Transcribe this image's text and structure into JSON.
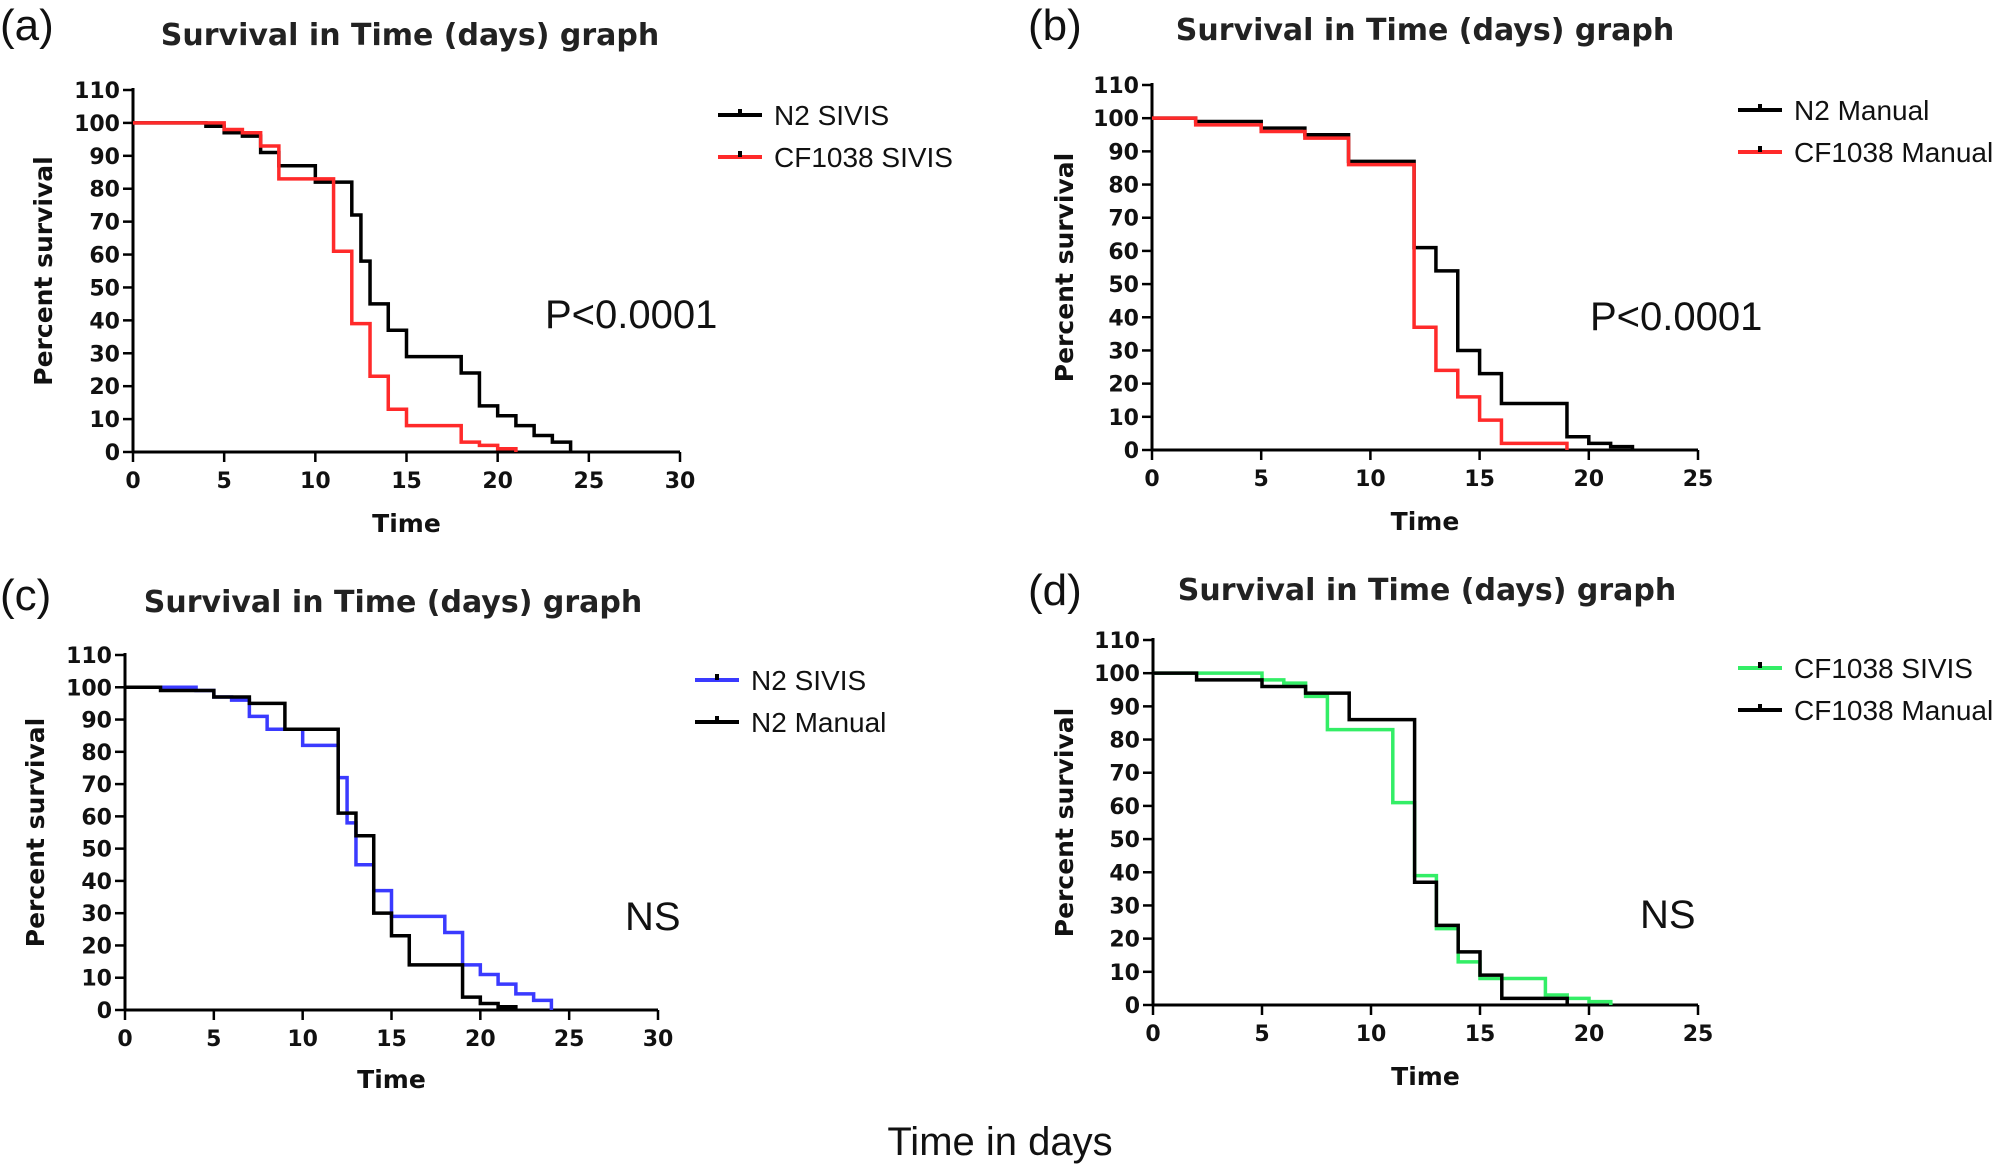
{
  "figure": {
    "footer_label": "Time in days"
  },
  "chart_data": [
    {
      "type": "line",
      "panel_label": "(a)",
      "title": "Survival in Time (days) graph",
      "xlabel": "Time",
      "ylabel": "Percent survival",
      "xlim": [
        0,
        30
      ],
      "ylim": [
        0,
        110
      ],
      "xticks": [
        0,
        5,
        10,
        15,
        20,
        25,
        30
      ],
      "yticks": [
        0,
        10,
        20,
        30,
        40,
        50,
        60,
        70,
        80,
        90,
        100,
        110
      ],
      "annotation": "P<0.0001",
      "series": [
        {
          "name": "N2 SIVIS",
          "color": "#000000",
          "x": [
            0,
            4,
            5,
            6,
            7,
            8,
            10,
            11,
            12,
            12.5,
            13,
            14,
            15,
            18,
            19,
            20,
            21,
            22,
            23,
            24
          ],
          "y": [
            100,
            99,
            97,
            96,
            91,
            87,
            82,
            82,
            72,
            58,
            45,
            37,
            29,
            24,
            14,
            11,
            8,
            5,
            3,
            0
          ]
        },
        {
          "name": "CF1038 SIVIS",
          "color": "#ff2a2a",
          "x": [
            0,
            5,
            6,
            7,
            8,
            10,
            11,
            12,
            13,
            14,
            15,
            18,
            19,
            20,
            21
          ],
          "y": [
            100,
            98,
            97,
            93,
            83,
            83,
            61,
            39,
            23,
            13,
            8,
            3,
            2,
            1,
            0
          ]
        }
      ]
    },
    {
      "type": "line",
      "panel_label": "(b)",
      "title": "Survival in Time (days) graph",
      "xlabel": "Time",
      "ylabel": "Percent survival",
      "xlim": [
        0,
        25
      ],
      "ylim": [
        0,
        110
      ],
      "xticks": [
        0,
        5,
        10,
        15,
        20,
        25
      ],
      "yticks": [
        0,
        10,
        20,
        30,
        40,
        50,
        60,
        70,
        80,
        90,
        100,
        110
      ],
      "annotation": "P<0.0001",
      "series": [
        {
          "name": "N2 Manual",
          "color": "#000000",
          "x": [
            0,
            2,
            5,
            7,
            9,
            12,
            13,
            14,
            15,
            16,
            19,
            20,
            21,
            22
          ],
          "y": [
            100,
            99,
            97,
            95,
            87,
            61,
            54,
            30,
            23,
            14,
            4,
            2,
            1,
            0
          ]
        },
        {
          "name": "CF1038 Manual",
          "color": "#ff2a2a",
          "x": [
            0,
            2,
            5,
            7,
            9,
            12,
            13,
            14,
            15,
            16,
            19
          ],
          "y": [
            100,
            98,
            96,
            94,
            86,
            37,
            24,
            16,
            9,
            2,
            0
          ]
        }
      ]
    },
    {
      "type": "line",
      "panel_label": "(c)",
      "title": "Survival in Time (days) graph",
      "xlabel": "Time",
      "ylabel": "Percent survival",
      "xlim": [
        0,
        30
      ],
      "ylim": [
        0,
        110
      ],
      "xticks": [
        0,
        5,
        10,
        15,
        20,
        25,
        30
      ],
      "yticks": [
        0,
        10,
        20,
        30,
        40,
        50,
        60,
        70,
        80,
        90,
        100,
        110
      ],
      "annotation": "NS",
      "series": [
        {
          "name": "N2 SIVIS",
          "color": "#3a3aff",
          "x": [
            0,
            4,
            5,
            6,
            7,
            8,
            10,
            11,
            12,
            12.5,
            13,
            14,
            15,
            18,
            19,
            20,
            21,
            22,
            23,
            24
          ],
          "y": [
            100,
            99,
            97,
            96,
            91,
            87,
            82,
            82,
            72,
            58,
            45,
            37,
            29,
            24,
            14,
            11,
            8,
            5,
            3,
            0
          ]
        },
        {
          "name": "N2 Manual",
          "color": "#000000",
          "x": [
            0,
            2,
            5,
            7,
            9,
            12,
            13,
            14,
            15,
            16,
            19,
            20,
            21,
            22
          ],
          "y": [
            100,
            99,
            97,
            95,
            87,
            61,
            54,
            30,
            23,
            14,
            4,
            2,
            1,
            0
          ]
        }
      ]
    },
    {
      "type": "line",
      "panel_label": "(d)",
      "title": "Survival in Time (days) graph",
      "xlabel": "Time",
      "ylabel": "Percent survival",
      "xlim": [
        0,
        25
      ],
      "ylim": [
        0,
        110
      ],
      "xticks": [
        0,
        5,
        10,
        15,
        20,
        25
      ],
      "yticks": [
        0,
        10,
        20,
        30,
        40,
        50,
        60,
        70,
        80,
        90,
        100,
        110
      ],
      "annotation": "NS",
      "series": [
        {
          "name": "CF1038 SIVIS",
          "color": "#33ee66",
          "x": [
            0,
            5,
            6,
            7,
            8,
            10,
            11,
            12,
            13,
            14,
            15,
            18,
            19,
            20,
            21
          ],
          "y": [
            100,
            98,
            97,
            93,
            83,
            83,
            61,
            39,
            23,
            13,
            8,
            3,
            2,
            1,
            0
          ]
        },
        {
          "name": "CF1038 Manual",
          "color": "#000000",
          "x": [
            0,
            2,
            5,
            7,
            9,
            12,
            13,
            14,
            15,
            16,
            19
          ],
          "y": [
            100,
            98,
            96,
            94,
            86,
            37,
            24,
            16,
            9,
            2,
            0
          ]
        }
      ]
    }
  ]
}
